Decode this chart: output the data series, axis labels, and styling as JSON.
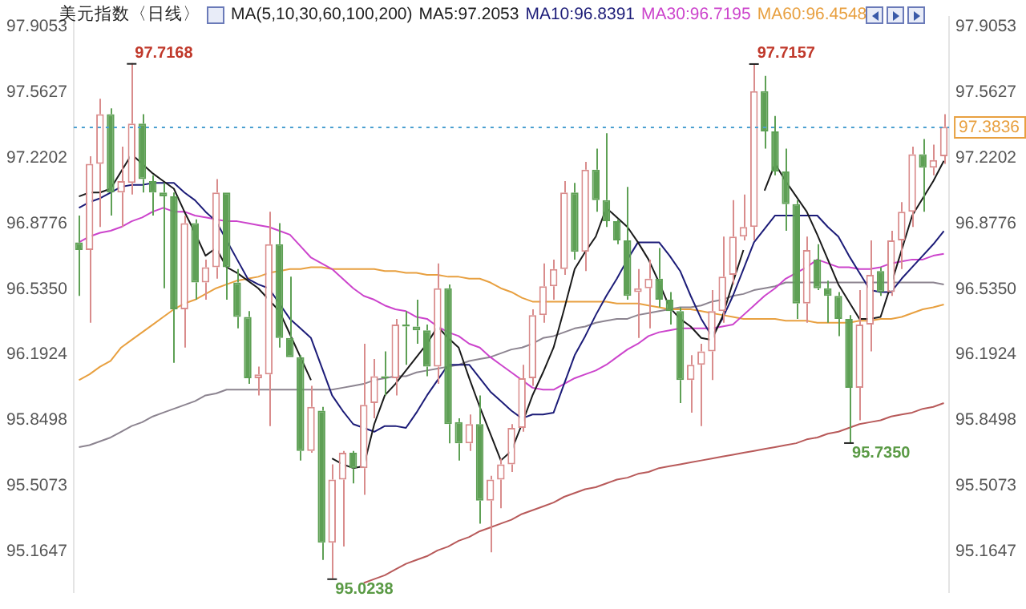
{
  "chart_data": {
    "type": "candlestick",
    "title": "美元指数〈日线〉",
    "subtitle": "MA(5,10,30,60,100,200)",
    "categories": [
      null,
      null,
      null,
      null,
      null,
      null,
      null,
      null,
      null,
      null,
      null,
      null,
      null,
      null,
      null,
      null,
      null,
      null,
      null,
      null,
      null,
      null,
      null,
      null,
      null,
      null,
      null,
      null,
      null,
      null,
      null,
      null,
      null,
      null,
      null,
      null,
      null,
      null,
      null,
      null,
      null,
      null,
      null,
      null,
      null,
      null,
      null,
      null,
      null,
      null,
      null,
      null,
      null,
      null,
      null,
      null,
      null,
      null,
      null,
      null,
      null,
      null,
      null,
      null,
      null,
      null,
      null,
      null,
      null,
      null,
      null,
      null,
      null,
      null,
      null,
      null,
      null,
      null,
      null,
      null,
      null,
      null,
      null
    ],
    "ohlc": [
      [
        96.78,
        96.92,
        96.5,
        96.74
      ],
      [
        96.74,
        97.23,
        96.36,
        97.19
      ],
      [
        97.19,
        97.53,
        96.86,
        97.45
      ],
      [
        97.45,
        97.48,
        96.92,
        97.04
      ],
      [
        97.04,
        97.28,
        96.86,
        97.1
      ],
      [
        97.09,
        97.7168,
        97.03,
        97.4
      ],
      [
        97.4,
        97.45,
        97.04,
        97.11
      ],
      [
        97.1,
        97.13,
        96.92,
        97.04
      ],
      [
        97.04,
        97.09,
        96.54,
        97.02
      ],
      [
        97.02,
        97.04,
        96.15,
        96.43
      ],
      [
        96.43,
        96.92,
        96.23,
        96.88
      ],
      [
        96.88,
        96.9,
        96.48,
        96.57
      ],
      [
        96.57,
        96.69,
        96.48,
        96.65
      ],
      [
        96.65,
        97.11,
        96.59,
        97.04
      ],
      [
        97.04,
        97.04,
        96.48,
        96.65
      ],
      [
        96.57,
        96.64,
        96.33,
        96.39
      ],
      [
        96.39,
        96.42,
        96.04,
        96.07
      ],
      [
        96.07,
        96.13,
        95.98,
        96.09
      ],
      [
        96.09,
        96.94,
        95.82,
        96.77
      ],
      [
        96.77,
        96.88,
        96.23,
        96.28
      ],
      [
        96.28,
        96.6,
        96.18,
        96.18
      ],
      [
        96.18,
        96.19,
        95.64,
        95.69
      ],
      [
        95.69,
        96.03,
        95.68,
        95.92
      ],
      [
        95.9,
        95.92,
        95.12,
        95.21
      ],
      [
        95.21,
        95.62,
        95.0238,
        95.54
      ],
      [
        95.54,
        95.69,
        95.19,
        95.68
      ],
      [
        95.68,
        95.69,
        95.52,
        95.6
      ],
      [
        95.6,
        96.25,
        95.46,
        95.93
      ],
      [
        95.94,
        96.17,
        95.86,
        96.08
      ],
      [
        96.08,
        96.21,
        95.98,
        96.07
      ],
      [
        96.07,
        96.38,
        95.98,
        96.35
      ],
      [
        96.35,
        96.42,
        96.14,
        96.34
      ],
      [
        96.34,
        96.48,
        96.25,
        96.32
      ],
      [
        96.32,
        96.35,
        96.08,
        96.13
      ],
      [
        96.13,
        96.67,
        96.04,
        96.54
      ],
      [
        96.54,
        96.56,
        95.73,
        95.83
      ],
      [
        95.84,
        95.86,
        95.64,
        95.73
      ],
      [
        95.73,
        95.88,
        95.69,
        95.83
      ],
      [
        95.83,
        95.98,
        95.31,
        95.43
      ],
      [
        95.43,
        95.56,
        95.16,
        95.54
      ],
      [
        95.54,
        95.65,
        95.39,
        95.62
      ],
      [
        95.62,
        95.83,
        95.58,
        95.81
      ],
      [
        95.81,
        96.14,
        95.79,
        96.07
      ],
      [
        96.07,
        96.43,
        96.03,
        96.4
      ],
      [
        96.4,
        96.67,
        96.36,
        96.55
      ],
      [
        96.55,
        96.69,
        96.48,
        96.64
      ],
      [
        96.64,
        97.1,
        96.61,
        97.04
      ],
      [
        97.04,
        97.09,
        96.69,
        96.73
      ],
      [
        96.73,
        97.2,
        96.63,
        97.16
      ],
      [
        97.16,
        97.27,
        96.94,
        97.0
      ],
      [
        97.0,
        97.35,
        96.86,
        96.89
      ],
      [
        96.89,
        96.9,
        96.77,
        96.79
      ],
      [
        96.79,
        97.07,
        96.48,
        96.5
      ],
      [
        96.52,
        96.64,
        96.28,
        96.54
      ],
      [
        96.54,
        96.69,
        96.33,
        96.59
      ],
      [
        96.59,
        96.75,
        96.44,
        96.48
      ],
      [
        96.48,
        96.52,
        96.35,
        96.42
      ],
      [
        96.42,
        96.44,
        95.94,
        96.06
      ],
      [
        96.06,
        96.19,
        95.89,
        96.14
      ],
      [
        96.14,
        96.25,
        95.82,
        96.21
      ],
      [
        96.21,
        96.53,
        96.06,
        96.42
      ],
      [
        96.42,
        96.81,
        96.36,
        96.6
      ],
      [
        96.61,
        97.0,
        96.56,
        96.81
      ],
      [
        96.81,
        97.03,
        96.79,
        96.86
      ],
      [
        96.86,
        97.7157,
        96.79,
        97.57
      ],
      [
        97.57,
        97.65,
        97.27,
        97.36
      ],
      [
        97.36,
        97.44,
        97.13,
        97.15
      ],
      [
        97.15,
        97.27,
        96.84,
        96.98
      ],
      [
        96.98,
        97.0,
        96.38,
        96.46
      ],
      [
        96.46,
        96.81,
        96.36,
        96.74
      ],
      [
        96.69,
        96.77,
        96.53,
        96.54
      ],
      [
        96.54,
        96.58,
        96.36,
        96.5
      ],
      [
        96.5,
        96.52,
        96.29,
        96.38
      ],
      [
        96.38,
        96.4,
        95.735,
        96.02
      ],
      [
        96.02,
        96.53,
        95.85,
        96.35
      ],
      [
        96.35,
        96.79,
        96.21,
        96.61
      ],
      [
        96.63,
        96.65,
        96.5,
        96.52
      ],
      [
        96.52,
        96.84,
        96.5,
        96.79
      ],
      [
        96.79,
        96.99,
        96.64,
        96.94
      ],
      [
        96.94,
        97.28,
        96.86,
        97.24
      ],
      [
        97.24,
        97.32,
        96.94,
        97.17
      ],
      [
        97.17,
        97.29,
        97.13,
        97.21
      ],
      [
        97.23,
        97.45,
        97.19,
        97.3836
      ]
    ],
    "colors": [
      "#5ea055",
      "#d98c8c",
      "#d98c8c",
      "#5ea055",
      "#d98c8c",
      "#d98c8c",
      "#5ea055",
      "#5ea055",
      "#5ea055",
      "#5ea055",
      "#d98c8c",
      "#5ea055",
      "#d98c8c",
      "#d98c8c",
      "#5ea055",
      "#5ea055",
      "#5ea055",
      "#d98c8c",
      "#d98c8c",
      "#5ea055",
      "#5ea055",
      "#5ea055",
      "#d98c8c",
      "#5ea055",
      "#d98c8c",
      "#d98c8c",
      "#5ea055",
      "#d98c8c",
      "#d98c8c",
      "#5ea055",
      "#d98c8c",
      "#5ea055",
      "#5ea055",
      "#5ea055",
      "#d98c8c",
      "#5ea055",
      "#5ea055",
      "#d98c8c",
      "#5ea055",
      "#d98c8c",
      "#d98c8c",
      "#d98c8c",
      "#d98c8c",
      "#d98c8c",
      "#d98c8c",
      "#d98c8c",
      "#d98c8c",
      "#5ea055",
      "#d98c8c",
      "#5ea055",
      "#5ea055",
      "#5ea055",
      "#5ea055",
      "#d98c8c",
      "#d98c8c",
      "#5ea055",
      "#5ea055",
      "#5ea055",
      "#d98c8c",
      "#d98c8c",
      "#d98c8c",
      "#d98c8c",
      "#d98c8c",
      "#d98c8c",
      "#d98c8c",
      "#5ea055",
      "#5ea055",
      "#5ea055",
      "#5ea055",
      "#d98c8c",
      "#5ea055",
      "#5ea055",
      "#5ea055",
      "#5ea055",
      "#d98c8c",
      "#d98c8c",
      "#5ea055",
      "#d98c8c",
      "#d98c8c",
      "#d98c8c",
      "#5ea055",
      "#d98c8c",
      "#d98c8c"
    ],
    "series": [
      {
        "type": "line",
        "name": "MA5:97.2053",
        "color": "#1a1a1a",
        "values": [
          97.02,
          97.04,
          97.04,
          97.06,
          97.15,
          97.24,
          97.19,
          97.14,
          97.1,
          97.06,
          96.94,
          96.83,
          96.71,
          96.75,
          96.65,
          96.62,
          96.58,
          96.54,
          96.48,
          96.42,
          96.3,
          96.18,
          96.06,
          null,
          95.65,
          95.62,
          95.6,
          95.61,
          95.83,
          95.98,
          96.04,
          96.11,
          96.18,
          96.25,
          96.34,
          96.28,
          96.23,
          96.07,
          95.92,
          95.78,
          95.64,
          95.69,
          95.83,
          95.98,
          96.1,
          96.23,
          96.43,
          96.64,
          96.73,
          96.81,
          96.96,
          96.91,
          96.86,
          96.78,
          96.69,
          96.57,
          96.44,
          96.38,
          96.34,
          96.28,
          96.27,
          96.39,
          96.57,
          96.74,
          null,
          97.05,
          97.19,
          97.1,
          97.02,
          96.94,
          96.82,
          96.69,
          96.56,
          96.47,
          96.38,
          96.38,
          96.39,
          96.56,
          96.74,
          96.92,
          97.01,
          97.1,
          97.2053
        ]
      },
      {
        "type": "line",
        "name": "MA10:96.8391",
        "color": "#1c1c78",
        "values": [
          96.96,
          96.99,
          97.01,
          97.04,
          97.07,
          97.08,
          97.08,
          97.09,
          97.09,
          97.09,
          97.04,
          97.0,
          96.94,
          96.89,
          96.79,
          96.69,
          96.59,
          96.56,
          96.54,
          96.46,
          96.38,
          96.33,
          96.28,
          96.13,
          95.98,
          95.9,
          95.83,
          95.81,
          95.79,
          95.82,
          95.82,
          95.81,
          95.89,
          95.98,
          96.06,
          96.14,
          96.14,
          96.14,
          96.07,
          96.0,
          95.95,
          95.9,
          95.86,
          95.88,
          95.88,
          95.89,
          96.04,
          96.19,
          96.29,
          96.4,
          96.5,
          96.59,
          96.69,
          96.78,
          96.78,
          96.78,
          96.71,
          96.63,
          96.5,
          96.38,
          96.29,
          96.38,
          96.5,
          96.64,
          96.78,
          96.85,
          96.92,
          96.92,
          96.92,
          96.92,
          96.92,
          96.86,
          96.81,
          96.71,
          96.62,
          96.53,
          96.52,
          96.52,
          96.59,
          96.65,
          96.71,
          96.77,
          96.8391
        ]
      },
      {
        "type": "line",
        "name": "MA30:96.7195",
        "color": "#cc44cc",
        "values": [
          96.78,
          96.81,
          96.83,
          96.84,
          96.86,
          96.89,
          96.91,
          96.94,
          96.96,
          96.94,
          96.94,
          96.92,
          96.91,
          96.9,
          96.89,
          96.89,
          96.88,
          96.87,
          96.86,
          96.84,
          96.82,
          96.76,
          96.7,
          96.67,
          96.64,
          96.59,
          96.54,
          96.5,
          96.48,
          96.45,
          96.43,
          96.42,
          96.39,
          96.38,
          96.34,
          96.31,
          96.29,
          96.25,
          96.23,
          96.18,
          96.14,
          96.1,
          96.06,
          96.02,
          96.01,
          96.01,
          96.04,
          96.07,
          96.09,
          96.11,
          96.14,
          96.18,
          96.22,
          96.25,
          96.29,
          96.31,
          96.32,
          96.33,
          96.33,
          96.33,
          96.33,
          96.34,
          96.35,
          96.4,
          96.45,
          96.5,
          96.54,
          96.59,
          96.62,
          96.65,
          96.69,
          96.67,
          96.65,
          96.65,
          96.64,
          96.64,
          96.65,
          96.67,
          96.68,
          96.69,
          96.69,
          96.71,
          96.7195
        ]
      },
      {
        "type": "line",
        "name": "MA60:96.4548",
        "color": "#e8a040",
        "values": [
          96.06,
          96.09,
          96.13,
          96.16,
          96.23,
          96.27,
          96.31,
          96.35,
          96.39,
          96.43,
          96.46,
          96.48,
          96.51,
          96.54,
          96.56,
          96.58,
          96.59,
          96.6,
          96.62,
          96.63,
          96.64,
          96.64,
          96.65,
          96.65,
          96.64,
          96.64,
          96.64,
          96.64,
          96.64,
          96.63,
          96.63,
          96.62,
          96.62,
          96.61,
          96.61,
          96.6,
          96.6,
          96.59,
          96.59,
          96.57,
          96.54,
          96.52,
          96.49,
          96.47,
          96.47,
          96.47,
          96.47,
          96.47,
          96.47,
          96.47,
          96.47,
          96.46,
          96.46,
          96.46,
          96.45,
          96.44,
          96.43,
          96.43,
          96.43,
          96.42,
          96.41,
          96.4,
          96.39,
          96.38,
          96.38,
          96.38,
          96.38,
          96.37,
          96.37,
          96.37,
          96.36,
          96.36,
          96.36,
          96.36,
          96.37,
          96.37,
          96.38,
          96.38,
          96.39,
          96.41,
          96.43,
          96.44,
          96.4548
        ]
      },
      {
        "type": "line",
        "color": "#8c8490",
        "values": [
          95.71,
          95.72,
          95.74,
          95.76,
          95.79,
          95.82,
          95.84,
          95.87,
          95.89,
          95.91,
          95.93,
          95.95,
          95.98,
          95.99,
          96.01,
          96.01,
          96.01,
          96.01,
          96.01,
          96.01,
          96.01,
          96.01,
          96.01,
          96.01,
          96.01,
          96.02,
          96.03,
          96.04,
          96.06,
          96.07,
          96.08,
          96.08,
          96.1,
          96.11,
          96.12,
          96.13,
          96.14,
          96.16,
          96.17,
          96.18,
          96.2,
          96.22,
          96.23,
          96.25,
          96.28,
          96.29,
          96.31,
          96.33,
          96.34,
          96.36,
          96.37,
          96.38,
          96.38,
          96.4,
          96.41,
          96.42,
          96.43,
          96.44,
          96.44,
          96.45,
          96.47,
          96.48,
          96.5,
          96.51,
          96.53,
          96.54,
          96.55,
          96.57,
          96.57,
          96.57,
          96.57,
          96.57,
          96.57,
          96.57,
          96.57,
          96.57,
          96.57,
          96.57,
          96.57,
          96.57,
          96.57,
          96.57,
          96.56
        ]
      },
      {
        "type": "line",
        "color": "#b85a5a",
        "values": [
          null,
          null,
          null,
          null,
          null,
          null,
          null,
          null,
          null,
          null,
          null,
          null,
          null,
          null,
          null,
          null,
          null,
          null,
          null,
          null,
          null,
          null,
          null,
          null,
          null,
          null,
          null,
          95.0,
          95.02,
          95.04,
          95.07,
          95.1,
          95.12,
          95.14,
          95.17,
          95.19,
          95.22,
          95.24,
          95.27,
          95.29,
          95.31,
          95.33,
          95.36,
          95.38,
          95.4,
          95.42,
          95.45,
          95.47,
          95.49,
          95.5,
          95.52,
          95.54,
          95.55,
          95.57,
          95.58,
          95.6,
          95.61,
          95.62,
          95.63,
          95.64,
          95.65,
          95.66,
          95.67,
          95.68,
          95.69,
          95.7,
          95.71,
          95.72,
          95.73,
          95.75,
          95.76,
          95.78,
          95.79,
          95.81,
          95.83,
          95.84,
          95.85,
          95.87,
          95.88,
          95.89,
          95.91,
          95.92,
          95.94
        ]
      }
    ],
    "ylim": [
      94.95,
      97.96
    ],
    "yticks": [
      97.9053,
      97.5627,
      97.2202,
      96.8776,
      {
        "value": 96.535,
        "label": "96.5350"
      },
      96.1924,
      95.8498,
      95.5073,
      95.1647
    ],
    "y2lim": [
      94.95,
      97.96
    ],
    "y2ticks": [
      97.9053,
      97.5627,
      97.2202,
      96.8776,
      {
        "value": 96.535,
        "label": "96.5350"
      },
      96.1924,
      95.8498,
      95.5073,
      95.1647
    ],
    "ref_lines": [
      {
        "axis": "y2",
        "value": 97.3836,
        "label": "97.3836",
        "color": "#4a9fd0",
        "line_style": "dotted"
      }
    ],
    "annotations": [
      "97.7168",
      "97.7157",
      "95.0238",
      "95.7350"
    ],
    "legend": "top",
    "marker": "none",
    "line_style": "solid",
    "tick_labels": "y"
  }
}
